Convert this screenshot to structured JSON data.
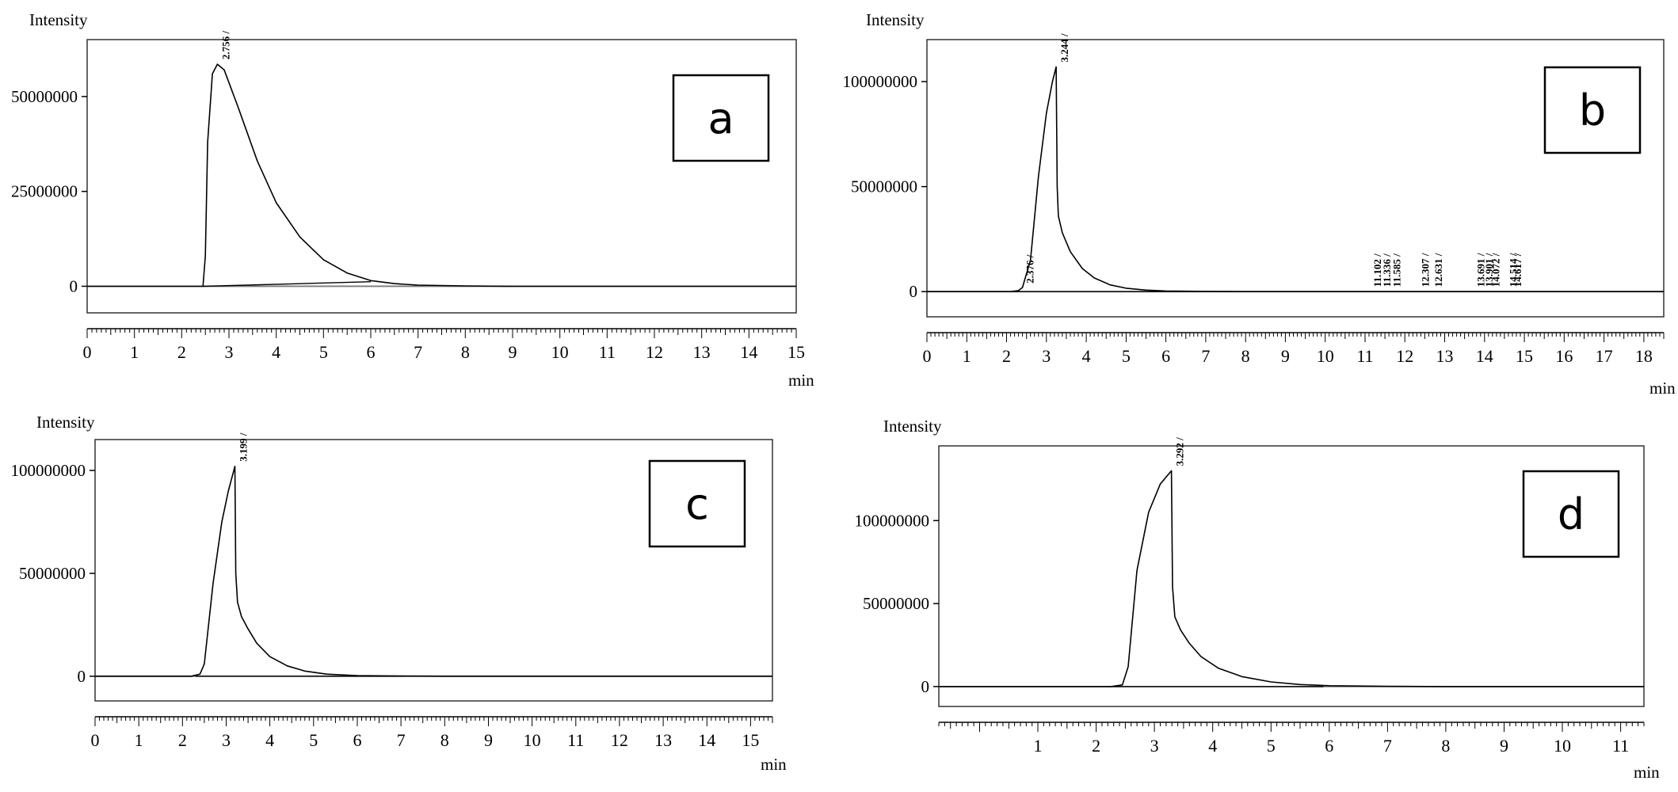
{
  "chart_data": [
    {
      "type": "line",
      "panel_label": "a",
      "ylabel": "Intensity",
      "xlabel": "min",
      "xlim": [
        0,
        15
      ],
      "ylim": [
        -7000000,
        65000000
      ],
      "x_ticks": [
        0,
        1,
        2,
        3,
        4,
        5,
        6,
        7,
        8,
        9,
        10,
        11,
        12,
        13,
        14,
        15
      ],
      "y_ticks": [
        0,
        25000000,
        50000000
      ],
      "y_tick_labels": [
        "0",
        "25000000",
        "50000000"
      ],
      "peak_labels": [
        {
          "x": 2.756,
          "text": "2.756 /"
        }
      ],
      "series": [
        {
          "kind": "signal",
          "x": [
            0,
            2.35,
            2.45,
            2.5,
            2.55,
            2.65,
            2.756,
            2.9,
            3.2,
            3.6,
            4.0,
            4.5,
            5.0,
            5.5,
            6.0,
            6.5,
            7.0,
            8.0,
            9.0,
            10,
            11,
            12,
            13,
            14,
            15
          ],
          "y": [
            0,
            0,
            0,
            8000000,
            38000000,
            56000000,
            58500000,
            57000000,
            47000000,
            33000000,
            22000000,
            13000000,
            7000000,
            3500000,
            1500000,
            700000,
            300000,
            100000,
            0,
            0,
            0,
            0,
            0,
            0,
            0
          ]
        },
        {
          "kind": "baseline",
          "x": [
            2.45,
            6.0
          ],
          "y": [
            0,
            1200000
          ]
        }
      ]
    },
    {
      "type": "line",
      "panel_label": "b",
      "ylabel": "Intensity",
      "xlabel": "min",
      "xlim": [
        0,
        18.5
      ],
      "ylim": [
        -12000000,
        120000000
      ],
      "x_ticks": [
        0,
        1,
        2,
        3,
        4,
        5,
        6,
        7,
        8,
        9,
        10,
        11,
        12,
        13,
        14,
        15,
        16,
        17,
        18
      ],
      "y_ticks": [
        0,
        50000000,
        100000000
      ],
      "y_tick_labels": [
        "0",
        "50000000",
        "100000000"
      ],
      "peak_labels": [
        {
          "x": 2.376,
          "text": "2.376 /"
        },
        {
          "x": 3.244,
          "text": "3.244 /"
        },
        {
          "x": 11.102,
          "text": "11.102 /"
        },
        {
          "x": 11.336,
          "text": "11.336 /"
        },
        {
          "x": 11.585,
          "text": "11.585 /"
        },
        {
          "x": 12.307,
          "text": "12.307 /"
        },
        {
          "x": 12.631,
          "text": "12.631 /"
        },
        {
          "x": 13.691,
          "text": "13.691 /"
        },
        {
          "x": 13.901,
          "text": "13.901 /"
        },
        {
          "x": 14.072,
          "text": "14.072 /"
        },
        {
          "x": 14.514,
          "text": "14.514 /"
        },
        {
          "x": 14.617,
          "text": "14.617 /"
        }
      ],
      "series": [
        {
          "kind": "signal",
          "x": [
            0,
            2.1,
            2.3,
            2.4,
            2.6,
            2.8,
            3.0,
            3.15,
            3.244,
            3.27,
            3.3,
            3.4,
            3.6,
            3.9,
            4.2,
            4.6,
            5.0,
            5.5,
            6.0,
            7.0,
            8.0,
            10,
            12,
            14,
            16,
            18.5
          ],
          "y": [
            0,
            0,
            500000,
            2000000,
            15000000,
            55000000,
            85000000,
            100000000,
            107000000,
            50000000,
            36000000,
            28000000,
            19000000,
            11000000,
            6500000,
            3200000,
            1600000,
            700000,
            300000,
            100000,
            0,
            0,
            0,
            0,
            0,
            0
          ]
        },
        {
          "kind": "baseline",
          "x": [
            2.0,
            9.0
          ],
          "y": [
            0,
            0
          ]
        },
        {
          "kind": "baseline",
          "x": [
            10.9,
            11.7
          ],
          "y": [
            0,
            0
          ]
        },
        {
          "kind": "baseline",
          "x": [
            12.2,
            12.9
          ],
          "y": [
            0,
            0
          ]
        },
        {
          "kind": "baseline",
          "x": [
            13.6,
            15.6
          ],
          "y": [
            0,
            0
          ]
        }
      ]
    },
    {
      "type": "line",
      "panel_label": "c",
      "ylabel": "Intensity",
      "xlabel": "min",
      "xlim": [
        0,
        15.5
      ],
      "ylim": [
        -12000000,
        115000000
      ],
      "x_ticks": [
        0,
        1,
        2,
        3,
        4,
        5,
        6,
        7,
        8,
        9,
        10,
        11,
        12,
        13,
        14,
        15
      ],
      "y_ticks": [
        0,
        50000000,
        100000000
      ],
      "y_tick_labels": [
        "0",
        "50000000",
        "100000000"
      ],
      "peak_labels": [
        {
          "x": 3.199,
          "text": "3.199 /"
        }
      ],
      "series": [
        {
          "kind": "signal",
          "x": [
            0,
            2.2,
            2.4,
            2.5,
            2.7,
            2.9,
            3.05,
            3.199,
            3.22,
            3.26,
            3.35,
            3.5,
            3.7,
            4.0,
            4.4,
            4.8,
            5.3,
            6.0,
            7.0,
            8.0,
            10,
            12,
            15.5
          ],
          "y": [
            0,
            0,
            1000000,
            6000000,
            45000000,
            75000000,
            90000000,
            102000000,
            50000000,
            36000000,
            29000000,
            23000000,
            16000000,
            9500000,
            5000000,
            2500000,
            1000000,
            300000,
            100000,
            0,
            0,
            0,
            0
          ]
        },
        {
          "kind": "baseline",
          "x": [
            2.3,
            7.1
          ],
          "y": [
            0,
            0
          ]
        }
      ]
    },
    {
      "type": "line",
      "panel_label": "d",
      "ylabel": "Intensity",
      "xlabel": "min",
      "xlim": [
        -0.7,
        11.4
      ],
      "ylim": [
        -12000000,
        145000000
      ],
      "x_ticks": [
        1,
        2,
        3,
        4,
        5,
        6,
        7,
        8,
        9,
        10,
        11
      ],
      "y_ticks": [
        0,
        50000000,
        100000000
      ],
      "y_tick_labels": [
        "0",
        "50000000",
        "100000000"
      ],
      "peak_labels": [
        {
          "x": 3.292,
          "text": "3.292 /"
        }
      ],
      "series": [
        {
          "kind": "signal",
          "x": [
            -0.7,
            2.25,
            2.45,
            2.55,
            2.7,
            2.9,
            3.1,
            3.292,
            3.31,
            3.35,
            3.45,
            3.6,
            3.8,
            4.1,
            4.5,
            5.0,
            5.5,
            6.0,
            7.0,
            8.0,
            9.0,
            11.4
          ],
          "y": [
            0,
            0,
            1000000,
            12000000,
            70000000,
            105000000,
            122000000,
            130000000,
            60000000,
            42000000,
            34000000,
            26000000,
            18000000,
            11000000,
            6000000,
            2800000,
            1200000,
            500000,
            100000,
            0,
            0,
            0
          ]
        },
        {
          "kind": "baseline",
          "x": [
            2.2,
            5.9
          ],
          "y": [
            0,
            0
          ]
        }
      ]
    }
  ]
}
